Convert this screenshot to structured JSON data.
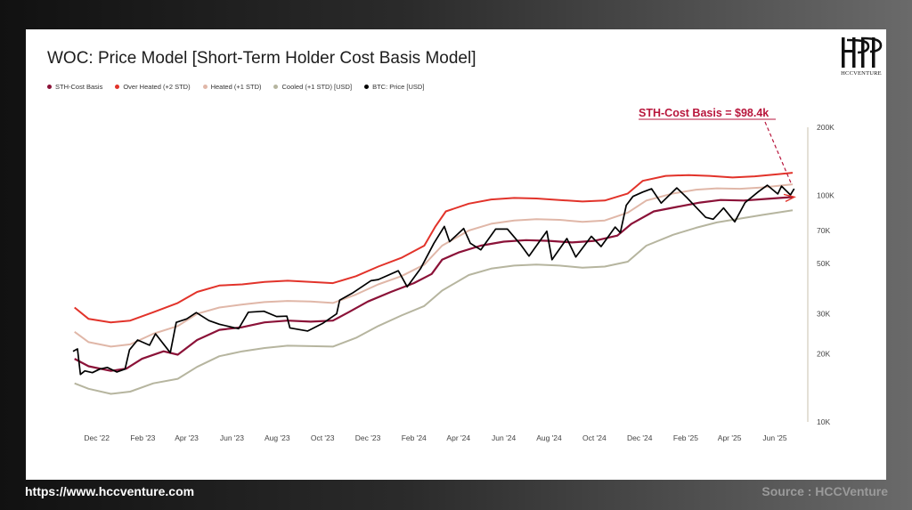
{
  "footer": {
    "url": "https://www.hccventure.com",
    "source": "Source : HCCVenture"
  },
  "logo": {
    "text": "HCCVENTURE"
  },
  "colors": {
    "sth": "#8b1238",
    "overheated": "#e2332a",
    "heated": "#e0b7a8",
    "cooled": "#b6b59f",
    "price": "#000000",
    "annotation": "#b8163c"
  },
  "chart_data": {
    "type": "line",
    "title": "WOC: Price Model [Short-Term Holder Cost Basis Model]",
    "y_scale": "log",
    "ylim": [
      10000,
      200000
    ],
    "xlim": [
      "2022-10-30",
      "2025-07-01"
    ],
    "x_ticks": [
      {
        "date": "2022-12-01",
        "label": "Dec '22"
      },
      {
        "date": "2023-02-01",
        "label": "Feb '23"
      },
      {
        "date": "2023-04-01",
        "label": "Apr '23"
      },
      {
        "date": "2023-06-01",
        "label": "Jun '23"
      },
      {
        "date": "2023-08-01",
        "label": "Aug '23"
      },
      {
        "date": "2023-10-01",
        "label": "Oct '23"
      },
      {
        "date": "2023-12-01",
        "label": "Dec '23"
      },
      {
        "date": "2024-02-01",
        "label": "Feb '24"
      },
      {
        "date": "2024-04-01",
        "label": "Apr '24"
      },
      {
        "date": "2024-06-01",
        "label": "Jun '24"
      },
      {
        "date": "2024-08-01",
        "label": "Aug '24"
      },
      {
        "date": "2024-10-01",
        "label": "Oct '24"
      },
      {
        "date": "2024-12-01",
        "label": "Dec '24"
      },
      {
        "date": "2025-02-01",
        "label": "Feb '25"
      },
      {
        "date": "2025-04-01",
        "label": "Apr '25"
      },
      {
        "date": "2025-06-01",
        "label": "Jun '25"
      }
    ],
    "y_ticks": [
      {
        "value": 10000,
        "label": "10K"
      },
      {
        "value": 20000,
        "label": "20K"
      },
      {
        "value": 30000,
        "label": "30K"
      },
      {
        "value": 50000,
        "label": "50K"
      },
      {
        "value": 70000,
        "label": "70K"
      },
      {
        "value": 100000,
        "label": "100K"
      },
      {
        "value": 200000,
        "label": "200K"
      }
    ],
    "annotation": {
      "text": "STH-Cost Basis = $98.4k",
      "date": "2025-06-25",
      "value": 98400
    },
    "series": [
      {
        "name": "STH-Cost Basis",
        "color": "#8b1238",
        "points": [
          [
            "2022-11-01",
            19000
          ],
          [
            "2022-11-20",
            17600
          ],
          [
            "2022-12-20",
            16800
          ],
          [
            "2023-01-10",
            17200
          ],
          [
            "2023-01-31",
            19000
          ],
          [
            "2023-03-01",
            20500
          ],
          [
            "2023-03-20",
            19800
          ],
          [
            "2023-04-15",
            23000
          ],
          [
            "2023-05-15",
            25500
          ],
          [
            "2023-06-15",
            26200
          ],
          [
            "2023-07-15",
            27500
          ],
          [
            "2023-08-15",
            28000
          ],
          [
            "2023-09-15",
            27700
          ],
          [
            "2023-10-15",
            28000
          ],
          [
            "2023-11-05",
            30500
          ],
          [
            "2023-12-01",
            34000
          ],
          [
            "2024-01-01",
            37500
          ],
          [
            "2024-02-01",
            41000
          ],
          [
            "2024-02-25",
            45000
          ],
          [
            "2024-03-10",
            52000
          ],
          [
            "2024-04-01",
            56000
          ],
          [
            "2024-05-01",
            60000
          ],
          [
            "2024-06-01",
            62500
          ],
          [
            "2024-07-01",
            63500
          ],
          [
            "2024-08-01",
            63000
          ],
          [
            "2024-09-01",
            62000
          ],
          [
            "2024-10-01",
            63000
          ],
          [
            "2024-11-01",
            66500
          ],
          [
            "2024-11-20",
            75000
          ],
          [
            "2024-12-20",
            85000
          ],
          [
            "2025-01-20",
            89000
          ],
          [
            "2025-02-20",
            93000
          ],
          [
            "2025-03-20",
            95500
          ],
          [
            "2025-04-20",
            95000
          ],
          [
            "2025-05-20",
            96500
          ],
          [
            "2025-06-25",
            98400
          ]
        ]
      },
      {
        "name": "Over Heated (+2 STD)",
        "color": "#e2332a",
        "points": [
          [
            "2022-11-01",
            32000
          ],
          [
            "2022-11-20",
            28500
          ],
          [
            "2022-12-20",
            27500
          ],
          [
            "2023-01-15",
            28000
          ],
          [
            "2023-02-15",
            30500
          ],
          [
            "2023-03-20",
            33500
          ],
          [
            "2023-04-15",
            37500
          ],
          [
            "2023-05-15",
            40000
          ],
          [
            "2023-06-15",
            40500
          ],
          [
            "2023-07-15",
            41500
          ],
          [
            "2023-08-15",
            42000
          ],
          [
            "2023-09-15",
            41500
          ],
          [
            "2023-10-15",
            41000
          ],
          [
            "2023-11-15",
            44000
          ],
          [
            "2023-12-15",
            48500
          ],
          [
            "2024-01-15",
            53000
          ],
          [
            "2024-02-15",
            60000
          ],
          [
            "2024-03-01",
            73000
          ],
          [
            "2024-03-15",
            85000
          ],
          [
            "2024-04-15",
            92000
          ],
          [
            "2024-05-15",
            96000
          ],
          [
            "2024-06-15",
            97500
          ],
          [
            "2024-07-15",
            97000
          ],
          [
            "2024-08-15",
            95500
          ],
          [
            "2024-09-15",
            94000
          ],
          [
            "2024-10-15",
            95000
          ],
          [
            "2024-11-15",
            102000
          ],
          [
            "2024-12-05",
            116000
          ],
          [
            "2025-01-05",
            122000
          ],
          [
            "2025-02-05",
            123000
          ],
          [
            "2025-03-05",
            122000
          ],
          [
            "2025-04-05",
            120000
          ],
          [
            "2025-05-05",
            121500
          ],
          [
            "2025-06-05",
            124000
          ],
          [
            "2025-06-25",
            126000
          ]
        ]
      },
      {
        "name": "Heated (+1 STD)",
        "color": "#e0b7a8",
        "points": [
          [
            "2022-11-01",
            25000
          ],
          [
            "2022-11-20",
            22500
          ],
          [
            "2022-12-20",
            21500
          ],
          [
            "2023-01-15",
            22000
          ],
          [
            "2023-02-15",
            24500
          ],
          [
            "2023-03-20",
            26500
          ],
          [
            "2023-04-15",
            30000
          ],
          [
            "2023-05-15",
            32000
          ],
          [
            "2023-06-15",
            33000
          ],
          [
            "2023-07-15",
            33800
          ],
          [
            "2023-08-15",
            34200
          ],
          [
            "2023-09-15",
            34000
          ],
          [
            "2023-10-15",
            33500
          ],
          [
            "2023-11-15",
            36500
          ],
          [
            "2023-12-15",
            40500
          ],
          [
            "2024-01-15",
            44000
          ],
          [
            "2024-02-15",
            49500
          ],
          [
            "2024-03-10",
            60000
          ],
          [
            "2024-04-15",
            70000
          ],
          [
            "2024-05-15",
            75000
          ],
          [
            "2024-06-15",
            77500
          ],
          [
            "2024-07-15",
            78500
          ],
          [
            "2024-08-15",
            78000
          ],
          [
            "2024-09-15",
            76500
          ],
          [
            "2024-10-15",
            77500
          ],
          [
            "2024-11-15",
            84000
          ],
          [
            "2024-12-10",
            95000
          ],
          [
            "2025-01-15",
            102000
          ],
          [
            "2025-02-15",
            106000
          ],
          [
            "2025-03-15",
            107500
          ],
          [
            "2025-04-15",
            107000
          ],
          [
            "2025-05-15",
            108500
          ],
          [
            "2025-06-25",
            112000
          ]
        ]
      },
      {
        "name": "Cooled (+1 STD) [USD]",
        "color": "#b6b59f",
        "points": [
          [
            "2022-11-01",
            14800
          ],
          [
            "2022-11-20",
            14000
          ],
          [
            "2022-12-20",
            13300
          ],
          [
            "2023-01-15",
            13600
          ],
          [
            "2023-02-15",
            14800
          ],
          [
            "2023-03-20",
            15500
          ],
          [
            "2023-04-15",
            17500
          ],
          [
            "2023-05-15",
            19500
          ],
          [
            "2023-06-15",
            20500
          ],
          [
            "2023-07-15",
            21200
          ],
          [
            "2023-08-15",
            21700
          ],
          [
            "2023-09-15",
            21600
          ],
          [
            "2023-10-15",
            21500
          ],
          [
            "2023-11-15",
            23500
          ],
          [
            "2023-12-15",
            26500
          ],
          [
            "2024-01-15",
            29500
          ],
          [
            "2024-02-15",
            32500
          ],
          [
            "2024-03-10",
            38000
          ],
          [
            "2024-04-15",
            44500
          ],
          [
            "2024-05-15",
            47500
          ],
          [
            "2024-06-15",
            49000
          ],
          [
            "2024-07-15",
            49500
          ],
          [
            "2024-08-15",
            49000
          ],
          [
            "2024-09-15",
            48000
          ],
          [
            "2024-10-15",
            48500
          ],
          [
            "2024-11-15",
            51000
          ],
          [
            "2024-12-10",
            60000
          ],
          [
            "2025-01-15",
            67000
          ],
          [
            "2025-02-15",
            72000
          ],
          [
            "2025-03-15",
            76000
          ],
          [
            "2025-04-15",
            79000
          ],
          [
            "2025-05-15",
            82000
          ],
          [
            "2025-06-25",
            86000
          ]
        ]
      },
      {
        "name": "BTC: Price [USD]",
        "color": "#000000",
        "points": [
          [
            "2022-10-30",
            20500
          ],
          [
            "2022-11-05",
            21000
          ],
          [
            "2022-11-09",
            16200
          ],
          [
            "2022-11-15",
            16800
          ],
          [
            "2022-11-25",
            16500
          ],
          [
            "2022-12-05",
            17100
          ],
          [
            "2022-12-15",
            17400
          ],
          [
            "2022-12-28",
            16600
          ],
          [
            "2023-01-08",
            17100
          ],
          [
            "2023-01-14",
            20800
          ],
          [
            "2023-01-25",
            23000
          ],
          [
            "2023-02-10",
            21800
          ],
          [
            "2023-02-18",
            24500
          ],
          [
            "2023-03-10",
            20200
          ],
          [
            "2023-03-18",
            27500
          ],
          [
            "2023-04-01",
            28500
          ],
          [
            "2023-04-14",
            30400
          ],
          [
            "2023-05-01",
            28000
          ],
          [
            "2023-05-15",
            27000
          ],
          [
            "2023-06-10",
            25800
          ],
          [
            "2023-06-23",
            30500
          ],
          [
            "2023-07-14",
            30800
          ],
          [
            "2023-07-31",
            29200
          ],
          [
            "2023-08-14",
            29300
          ],
          [
            "2023-08-18",
            26000
          ],
          [
            "2023-09-11",
            25200
          ],
          [
            "2023-10-01",
            27200
          ],
          [
            "2023-10-20",
            30000
          ],
          [
            "2023-10-24",
            34500
          ],
          [
            "2023-11-10",
            37000
          ],
          [
            "2023-12-05",
            42000
          ],
          [
            "2023-12-15",
            42500
          ],
          [
            "2024-01-11",
            46500
          ],
          [
            "2024-01-23",
            39500
          ],
          [
            "2024-02-10",
            47500
          ],
          [
            "2024-02-28",
            61500
          ],
          [
            "2024-03-13",
            73000
          ],
          [
            "2024-03-20",
            62500
          ],
          [
            "2024-04-08",
            71500
          ],
          [
            "2024-04-17",
            61500
          ],
          [
            "2024-05-01",
            57500
          ],
          [
            "2024-05-21",
            71000
          ],
          [
            "2024-06-06",
            71000
          ],
          [
            "2024-06-24",
            60500
          ],
          [
            "2024-07-05",
            54000
          ],
          [
            "2024-07-29",
            69500
          ],
          [
            "2024-08-05",
            52000
          ],
          [
            "2024-08-25",
            64500
          ],
          [
            "2024-09-06",
            53500
          ],
          [
            "2024-09-27",
            66000
          ],
          [
            "2024-10-10",
            59500
          ],
          [
            "2024-10-29",
            72500
          ],
          [
            "2024-11-05",
            68500
          ],
          [
            "2024-11-13",
            90500
          ],
          [
            "2024-11-22",
            99000
          ],
          [
            "2024-12-05",
            103500
          ],
          [
            "2024-12-17",
            107000
          ],
          [
            "2024-12-30",
            92500
          ],
          [
            "2025-01-20",
            108000
          ],
          [
            "2025-02-03",
            97500
          ],
          [
            "2025-02-28",
            80000
          ],
          [
            "2025-03-10",
            78500
          ],
          [
            "2025-03-24",
            88000
          ],
          [
            "2025-04-08",
            76500
          ],
          [
            "2025-04-22",
            93000
          ],
          [
            "2025-05-10",
            104000
          ],
          [
            "2025-05-22",
            111000
          ],
          [
            "2025-06-05",
            101500
          ],
          [
            "2025-06-10",
            110000
          ],
          [
            "2025-06-22",
            100500
          ],
          [
            "2025-06-27",
            107000
          ]
        ]
      }
    ]
  }
}
